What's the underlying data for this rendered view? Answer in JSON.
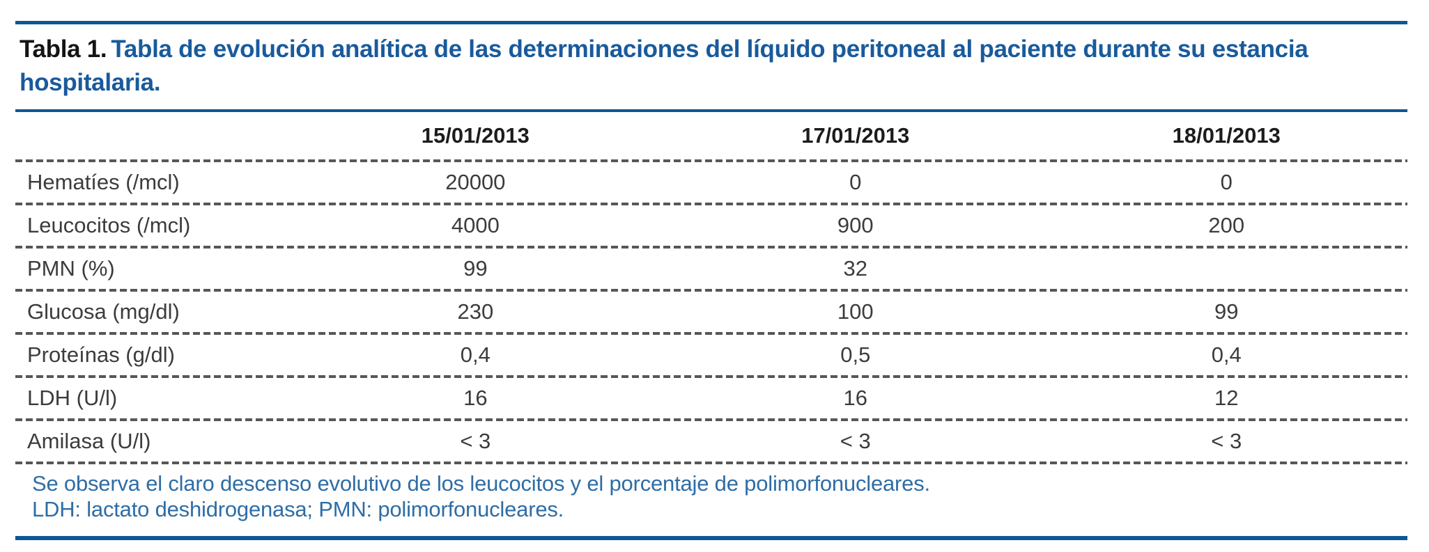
{
  "colors": {
    "accent_blue_rule": "#0d5796",
    "caption_blue": "#195a9c",
    "footnote_blue": "#2e6da6",
    "body_text": "#3c3c3c",
    "dashed_divider": "#575757"
  },
  "caption": {
    "number": "Tabla 1.",
    "text": "Tabla de evolución analítica de las determinaciones del líquido peritoneal al paciente durante su estancia hospitalaria."
  },
  "table": {
    "columns": [
      "15/01/2013",
      "17/01/2013",
      "18/01/2013"
    ],
    "rows": [
      {
        "label": "Hematíes (/mcl)",
        "values": [
          "20000",
          "0",
          "0"
        ]
      },
      {
        "label": "Leucocitos (/mcl)",
        "values": [
          "4000",
          "900",
          "200"
        ]
      },
      {
        "label": "PMN (%)",
        "values": [
          "99",
          "32",
          ""
        ]
      },
      {
        "label": "Glucosa (mg/dl)",
        "values": [
          "230",
          "100",
          "99"
        ]
      },
      {
        "label": "Proteínas (g/dl)",
        "values": [
          "0,4",
          "0,5",
          "0,4"
        ]
      },
      {
        "label": "LDH (U/l)",
        "values": [
          "16",
          "16",
          "12"
        ]
      },
      {
        "label": "Amilasa (U/l)",
        "values": [
          "< 3",
          "< 3",
          "< 3"
        ]
      }
    ]
  },
  "footnotes": {
    "line1": "Se observa el claro descenso evolutivo de los leucocitos y el porcentaje de polimorfonucleares.",
    "line2": "LDH: lactato deshidrogenasa; PMN: polimorfonucleares."
  }
}
